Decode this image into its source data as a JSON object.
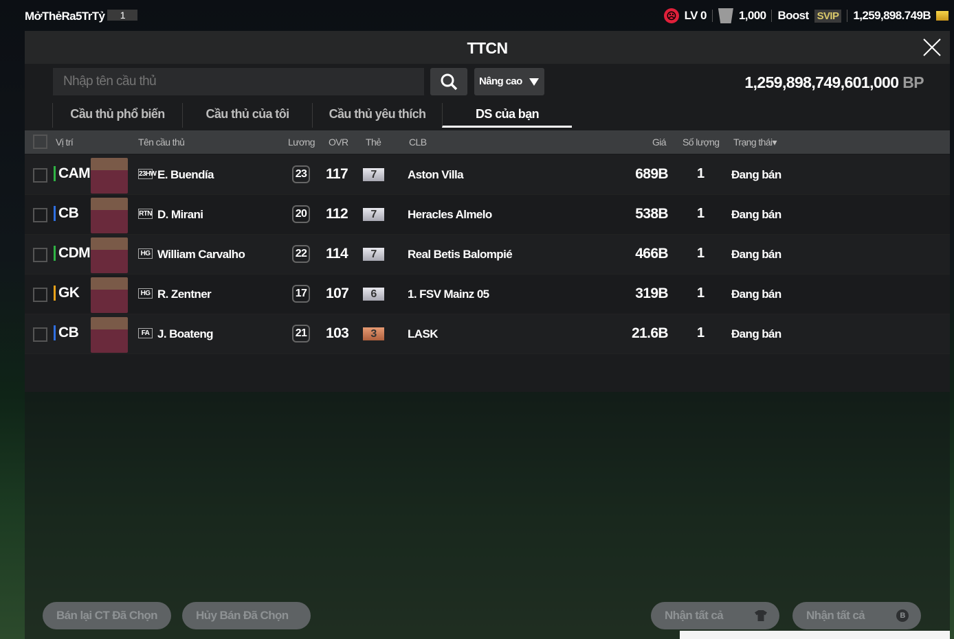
{
  "topbar": {
    "event_label": "MởThẻRa5TrTỷ",
    "event_count": "1",
    "level": "LV 0",
    "points": "1,000",
    "boost": "Boost",
    "vip": "SVIP",
    "balance": "1,259,898.749B"
  },
  "modal": {
    "title": "TTCN",
    "bp_value": "1,259,898,749,601,000",
    "bp_unit": "BP"
  },
  "search": {
    "placeholder": "Nhập tên cầu thủ",
    "advanced": "Nâng cao"
  },
  "tabs": [
    {
      "label": "Cầu thủ phổ biến"
    },
    {
      "label": "Cầu thủ của tôi"
    },
    {
      "label": "Cầu thủ yêu thích"
    },
    {
      "label": "DS của bạn",
      "active": true
    }
  ],
  "columns": {
    "position": "Vị trí",
    "name": "Tên cầu thủ",
    "salary": "Lương",
    "ovr": "OVR",
    "card": "Thẻ",
    "club": "CLB",
    "price": "Giá",
    "quantity": "Số lượng",
    "status": "Trạng thái"
  },
  "rows": [
    {
      "pos": "CAM",
      "pos_color": "#2fb344",
      "season": "23HW",
      "name": "E. Buendía",
      "salary": "23",
      "ovr": "117",
      "level": "7",
      "level_tier": "silver",
      "club": "Aston Villa",
      "price": "689B",
      "qty": "1",
      "status": "Đang bán"
    },
    {
      "pos": "CB",
      "pos_color": "#2f6fe0",
      "season": "RTN",
      "name": "D. Mirani",
      "salary": "20",
      "ovr": "112",
      "level": "7",
      "level_tier": "silver",
      "club": "Heracles Almelo",
      "price": "538B",
      "qty": "1",
      "status": "Đang bán"
    },
    {
      "pos": "CDM",
      "pos_color": "#2fb344",
      "season": "HG",
      "name": "William Carvalho",
      "salary": "22",
      "ovr": "114",
      "level": "7",
      "level_tier": "silver",
      "club": "Real Betis Balompié",
      "price": "466B",
      "qty": "1",
      "status": "Đang bán"
    },
    {
      "pos": "GK",
      "pos_color": "#e8a21a",
      "season": "HG",
      "name": "R. Zentner",
      "salary": "17",
      "ovr": "107",
      "level": "6",
      "level_tier": "silver",
      "club": "1. FSV Mainz 05",
      "price": "319B",
      "qty": "1",
      "status": "Đang bán"
    },
    {
      "pos": "CB",
      "pos_color": "#2f6fe0",
      "season": "FA",
      "name": "J. Boateng",
      "salary": "21",
      "ovr": "103",
      "level": "3",
      "level_tier": "bronze",
      "club": "LASK",
      "price": "21.6B",
      "qty": "1",
      "status": "Đang bán"
    }
  ],
  "footer": {
    "resell": "Bán lại CT Đã Chọn",
    "cancel": "Hủy Bán Đã Chọn",
    "claim_players": "Nhận tất cả",
    "claim_bp": "Nhận tất cả"
  }
}
